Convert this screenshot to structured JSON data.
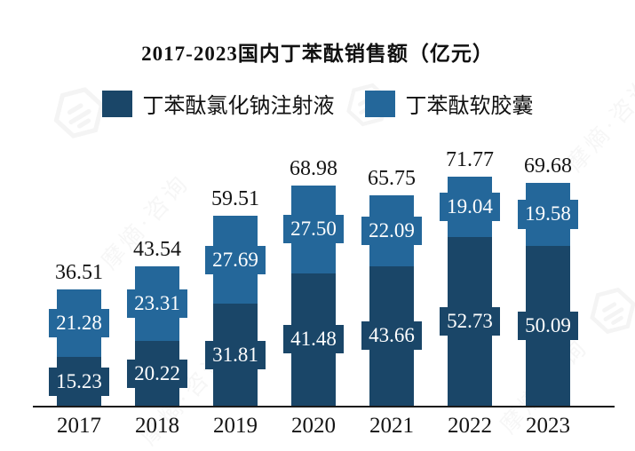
{
  "title": "2017-2023国内丁苯酞销售额（亿元）",
  "watermark": {
    "text": "摩熵·咨询"
  },
  "chart_data": {
    "type": "bar",
    "stacked": true,
    "title": "2017-2023国内丁苯酞销售额（亿元）",
    "categories": [
      "2017",
      "2018",
      "2019",
      "2020",
      "2021",
      "2022",
      "2023"
    ],
    "series": [
      {
        "name": "丁苯酞氯化钠注射液",
        "color": "#1A4668",
        "values": [
          15.23,
          20.22,
          31.81,
          41.48,
          43.66,
          52.73,
          50.09
        ]
      },
      {
        "name": "丁苯酞软胶囊",
        "color": "#24679A",
        "values": [
          21.28,
          23.31,
          27.69,
          27.5,
          22.09,
          19.04,
          19.58
        ]
      }
    ],
    "totals": [
      36.51,
      43.54,
      59.51,
      68.98,
      65.75,
      71.77,
      69.68
    ],
    "value_unit": "亿元",
    "xlabel": "",
    "ylabel": "",
    "ylim": [
      0,
      75
    ],
    "grid": false,
    "legend_position": "top",
    "label_style": "white text on series-colored boxes centered in each segment; totals in black above bars"
  }
}
